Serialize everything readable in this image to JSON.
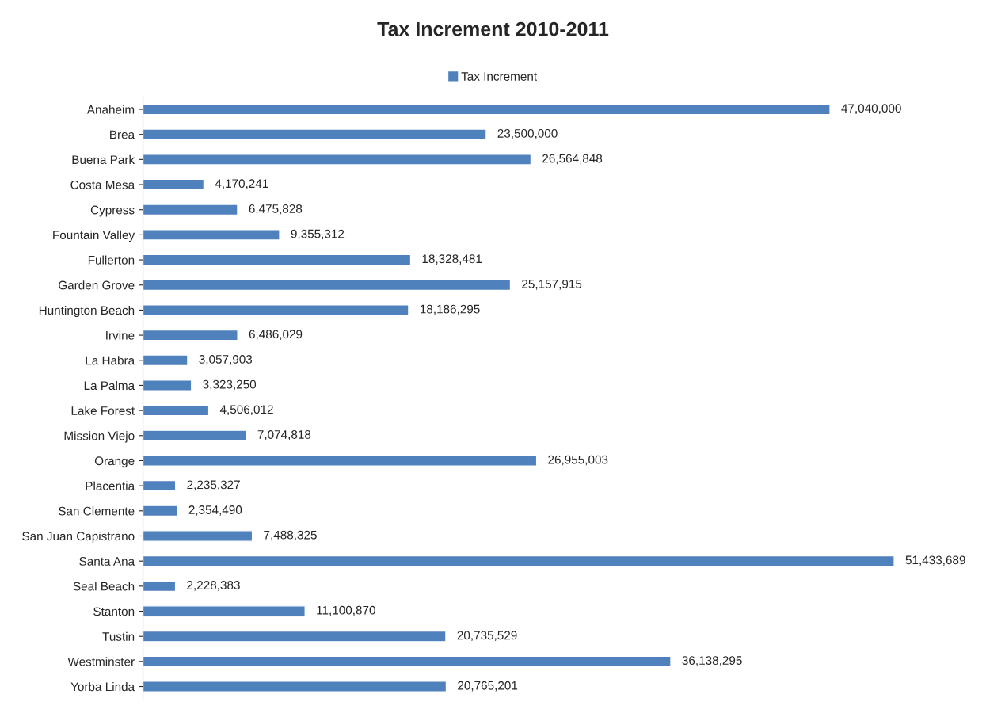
{
  "chart_data": {
    "type": "bar",
    "title": "Tax Increment 2010-2011",
    "orientation": "horizontal",
    "categories": [
      "Anaheim",
      "Brea",
      "Buena Park",
      "Costa Mesa",
      "Cypress",
      "Fountain Valley",
      "Fullerton",
      "Garden Grove",
      "Huntington Beach",
      "Irvine",
      "La Habra",
      "La Palma",
      "Lake Forest",
      "Mission Viejo",
      "Orange",
      "Placentia",
      "San Clemente",
      "San Juan Capistrano",
      "Santa Ana",
      "Seal Beach",
      "Stanton",
      "Tustin",
      "Westminster",
      "Yorba Linda"
    ],
    "series": [
      {
        "name": "Tax Increment",
        "color": "#4f81bd",
        "values": [
          47040000,
          23500000,
          26564848,
          4170241,
          6475828,
          9355312,
          18328481,
          25157915,
          18186295,
          6486029,
          3057903,
          3323250,
          4506012,
          7074818,
          26955003,
          2235327,
          2354490,
          7488325,
          51433689,
          2228383,
          11100870,
          20735529,
          36138295,
          20765201
        ],
        "value_labels": [
          "47,040,000",
          "23,500,000",
          "26,564,848",
          "4,170,241",
          "6,475,828",
          "9,355,312",
          "18,328,481",
          "25,157,915",
          "18,186,295",
          "6,486,029",
          "3,057,903",
          "3,323,250",
          "4,506,012",
          "7,074,818",
          "26,955,003",
          "2,235,327",
          "2,354,490",
          "7,488,325",
          "51,433,689",
          "2,228,383",
          "11,100,870",
          "20,735,529",
          "36,138,295",
          "20,765,201"
        ]
      }
    ],
    "legend": "top",
    "grid": false
  }
}
